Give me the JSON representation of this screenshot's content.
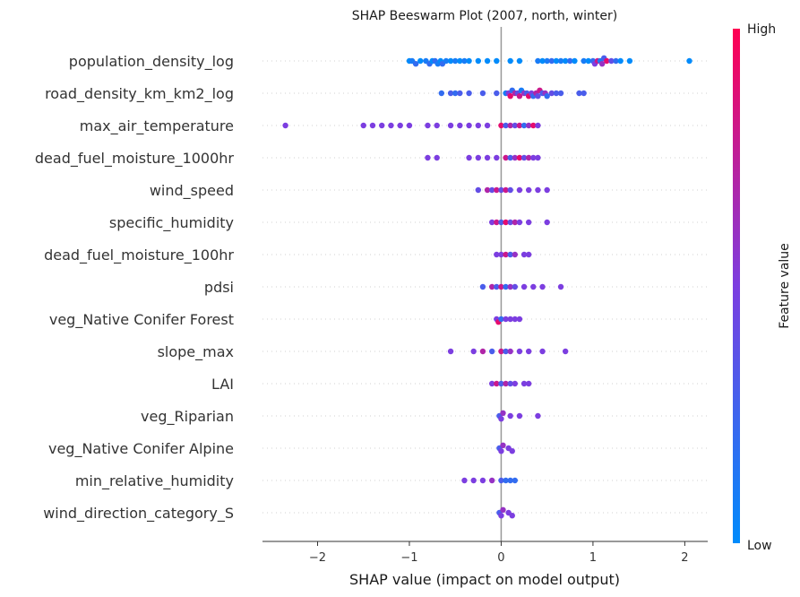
{
  "chart_data": {
    "type": "scatter",
    "subtype": "beeswarm",
    "title": "SHAP Beeswarm Plot (2007, north, winter)",
    "xlabel": "SHAP value (impact on model output)",
    "xlim": [
      -2.6,
      2.25
    ],
    "xticks": [
      -2,
      -1,
      0,
      1,
      2
    ],
    "xtick_labels": [
      "−2",
      "−1",
      "0",
      "1",
      "2"
    ],
    "zero_line": 0,
    "colorbar": {
      "label": "Feature value",
      "high": "High",
      "low": "Low",
      "low_color": "#008bfb",
      "high_color": "#ff0052"
    },
    "features": [
      {
        "name": "population_density_log",
        "points": [
          [
            -1.0,
            0.0
          ],
          [
            -0.97,
            0.1
          ],
          [
            -0.93,
            0.2
          ],
          [
            -0.88,
            0.0
          ],
          [
            -0.82,
            0.1
          ],
          [
            -0.78,
            0.2
          ],
          [
            -0.75,
            0.0
          ],
          [
            -0.72,
            0.2
          ],
          [
            -0.69,
            0.1
          ],
          [
            -0.66,
            0.0
          ],
          [
            -0.64,
            0.2
          ],
          [
            -0.6,
            0.1
          ],
          [
            -0.55,
            0.0
          ],
          [
            -0.5,
            0.1
          ],
          [
            -0.45,
            0.0
          ],
          [
            -0.4,
            0.1
          ],
          [
            -0.35,
            0.0
          ],
          [
            -0.25,
            0.0
          ],
          [
            -0.15,
            0.0
          ],
          [
            -0.05,
            0.0
          ],
          [
            0.1,
            0.0
          ],
          [
            0.2,
            0.0
          ],
          [
            0.4,
            0.1
          ],
          [
            0.45,
            0.0
          ],
          [
            0.5,
            0.1
          ],
          [
            0.55,
            0.2
          ],
          [
            0.6,
            0.0
          ],
          [
            0.65,
            0.1
          ],
          [
            0.7,
            0.0
          ],
          [
            0.75,
            0.2
          ],
          [
            0.8,
            0.0
          ],
          [
            0.9,
            0.1
          ],
          [
            0.95,
            0.0
          ],
          [
            1.0,
            0.2
          ],
          [
            1.02,
            0.5
          ],
          [
            1.05,
            0.8
          ],
          [
            1.08,
            0.1
          ],
          [
            1.1,
            0.6
          ],
          [
            1.12,
            0.3
          ],
          [
            1.15,
            0.9
          ],
          [
            1.2,
            0.4
          ],
          [
            1.25,
            0.2
          ],
          [
            1.3,
            0.0
          ],
          [
            1.4,
            0.0
          ],
          [
            2.05,
            0.0
          ]
        ]
      },
      {
        "name": "road_density_km_km2_log",
        "points": [
          [
            -0.65,
            0.2
          ],
          [
            -0.55,
            0.3
          ],
          [
            -0.5,
            0.2
          ],
          [
            -0.45,
            0.3
          ],
          [
            -0.35,
            0.3
          ],
          [
            -0.2,
            0.3
          ],
          [
            -0.05,
            0.3
          ],
          [
            0.05,
            0.1
          ],
          [
            0.08,
            0.5
          ],
          [
            0.1,
            0.9
          ],
          [
            0.12,
            0.2
          ],
          [
            0.15,
            0.7
          ],
          [
            0.18,
            0.4
          ],
          [
            0.2,
            0.8
          ],
          [
            0.22,
            0.1
          ],
          [
            0.25,
            0.6
          ],
          [
            0.28,
            0.3
          ],
          [
            0.3,
            0.9
          ],
          [
            0.33,
            0.5
          ],
          [
            0.35,
            0.2
          ],
          [
            0.38,
            0.7
          ],
          [
            0.4,
            0.4
          ],
          [
            0.42,
            0.8
          ],
          [
            0.45,
            0.3
          ],
          [
            0.48,
            0.6
          ],
          [
            0.5,
            0.2
          ],
          [
            0.55,
            0.4
          ],
          [
            0.6,
            0.3
          ],
          [
            0.65,
            0.3
          ],
          [
            0.85,
            0.3
          ],
          [
            0.9,
            0.3
          ]
        ]
      },
      {
        "name": "max_air_temperature",
        "points": [
          [
            -2.35,
            0.5
          ],
          [
            -1.5,
            0.5
          ],
          [
            -1.4,
            0.5
          ],
          [
            -1.3,
            0.5
          ],
          [
            -1.2,
            0.5
          ],
          [
            -1.1,
            0.5
          ],
          [
            -1.0,
            0.5
          ],
          [
            -0.8,
            0.5
          ],
          [
            -0.7,
            0.5
          ],
          [
            -0.55,
            0.5
          ],
          [
            -0.45,
            0.5
          ],
          [
            -0.35,
            0.5
          ],
          [
            -0.25,
            0.5
          ],
          [
            -0.15,
            0.5
          ],
          [
            0.0,
            0.9
          ],
          [
            0.05,
            0.3
          ],
          [
            0.1,
            0.7
          ],
          [
            0.15,
            0.4
          ],
          [
            0.2,
            0.8
          ],
          [
            0.25,
            0.2
          ],
          [
            0.3,
            0.6
          ],
          [
            0.35,
            0.9
          ],
          [
            0.4,
            0.5
          ]
        ]
      },
      {
        "name": "dead_fuel_moisture_1000hr",
        "points": [
          [
            -0.8,
            0.5
          ],
          [
            -0.7,
            0.5
          ],
          [
            -0.35,
            0.5
          ],
          [
            -0.25,
            0.5
          ],
          [
            -0.15,
            0.5
          ],
          [
            -0.05,
            0.5
          ],
          [
            0.05,
            0.8
          ],
          [
            0.1,
            0.3
          ],
          [
            0.15,
            0.6
          ],
          [
            0.2,
            0.9
          ],
          [
            0.25,
            0.4
          ],
          [
            0.3,
            0.7
          ],
          [
            0.35,
            0.5
          ],
          [
            0.4,
            0.5
          ]
        ]
      },
      {
        "name": "wind_speed",
        "points": [
          [
            -0.25,
            0.4
          ],
          [
            -0.15,
            0.7
          ],
          [
            -0.1,
            0.4
          ],
          [
            -0.05,
            0.8
          ],
          [
            0.0,
            0.4
          ],
          [
            0.05,
            0.8
          ],
          [
            0.1,
            0.4
          ],
          [
            0.2,
            0.5
          ],
          [
            0.3,
            0.5
          ],
          [
            0.4,
            0.5
          ],
          [
            0.5,
            0.5
          ]
        ]
      },
      {
        "name": "specific_humidity",
        "points": [
          [
            -0.1,
            0.5
          ],
          [
            -0.05,
            0.8
          ],
          [
            0.0,
            0.3
          ],
          [
            0.05,
            0.9
          ],
          [
            0.1,
            0.4
          ],
          [
            0.15,
            0.7
          ],
          [
            0.2,
            0.5
          ],
          [
            0.3,
            0.5
          ],
          [
            0.5,
            0.5
          ]
        ]
      },
      {
        "name": "dead_fuel_moisture_100hr",
        "points": [
          [
            -0.05,
            0.5
          ],
          [
            0.0,
            0.5
          ],
          [
            0.05,
            0.8
          ],
          [
            0.1,
            0.3
          ],
          [
            0.15,
            0.6
          ],
          [
            0.25,
            0.5
          ],
          [
            0.3,
            0.5
          ]
        ]
      },
      {
        "name": "pdsi",
        "points": [
          [
            -0.2,
            0.3
          ],
          [
            -0.1,
            0.7
          ],
          [
            -0.05,
            0.3
          ],
          [
            0.0,
            0.8
          ],
          [
            0.05,
            0.2
          ],
          [
            0.1,
            0.6
          ],
          [
            0.15,
            0.4
          ],
          [
            0.25,
            0.5
          ],
          [
            0.35,
            0.5
          ],
          [
            0.45,
            0.5
          ],
          [
            0.65,
            0.5
          ]
        ]
      },
      {
        "name": "veg_Native Conifer Forest",
        "points": [
          [
            -0.05,
            0.5
          ],
          [
            -0.03,
            0.9
          ],
          [
            0.0,
            0.2
          ],
          [
            0.05,
            0.5
          ],
          [
            0.1,
            0.5
          ],
          [
            0.15,
            0.5
          ],
          [
            0.2,
            0.5
          ]
        ]
      },
      {
        "name": "slope_max",
        "points": [
          [
            -0.55,
            0.5
          ],
          [
            -0.3,
            0.5
          ],
          [
            -0.2,
            0.7
          ],
          [
            -0.1,
            0.3
          ],
          [
            0.0,
            0.8
          ],
          [
            0.05,
            0.3
          ],
          [
            0.1,
            0.6
          ],
          [
            0.2,
            0.5
          ],
          [
            0.3,
            0.5
          ],
          [
            0.45,
            0.5
          ],
          [
            0.7,
            0.5
          ]
        ]
      },
      {
        "name": "LAI",
        "points": [
          [
            -0.1,
            0.5
          ],
          [
            -0.05,
            0.8
          ],
          [
            0.0,
            0.3
          ],
          [
            0.05,
            0.7
          ],
          [
            0.1,
            0.4
          ],
          [
            0.15,
            0.5
          ],
          [
            0.25,
            0.5
          ],
          [
            0.3,
            0.5
          ]
        ]
      },
      {
        "name": "veg_Riparian",
        "points": [
          [
            -0.02,
            0.3
          ],
          [
            0.0,
            0.5
          ],
          [
            0.02,
            0.6
          ],
          [
            0.1,
            0.5
          ],
          [
            0.2,
            0.5
          ],
          [
            0.4,
            0.5
          ]
        ]
      },
      {
        "name": "veg_Native Conifer Alpine",
        "points": [
          [
            -0.02,
            0.3
          ],
          [
            0.0,
            0.5
          ],
          [
            0.02,
            0.6
          ],
          [
            0.08,
            0.5
          ],
          [
            0.12,
            0.5
          ]
        ]
      },
      {
        "name": "min_relative_humidity",
        "points": [
          [
            -0.4,
            0.5
          ],
          [
            -0.3,
            0.5
          ],
          [
            -0.2,
            0.5
          ],
          [
            -0.1,
            0.6
          ],
          [
            0.0,
            0.3
          ],
          [
            0.05,
            0.2
          ],
          [
            0.1,
            0.2
          ],
          [
            0.15,
            0.2
          ]
        ]
      },
      {
        "name": "wind_direction_category_S",
        "points": [
          [
            -0.02,
            0.3
          ],
          [
            0.0,
            0.5
          ],
          [
            0.02,
            0.6
          ],
          [
            0.08,
            0.5
          ],
          [
            0.12,
            0.5
          ]
        ]
      }
    ]
  }
}
